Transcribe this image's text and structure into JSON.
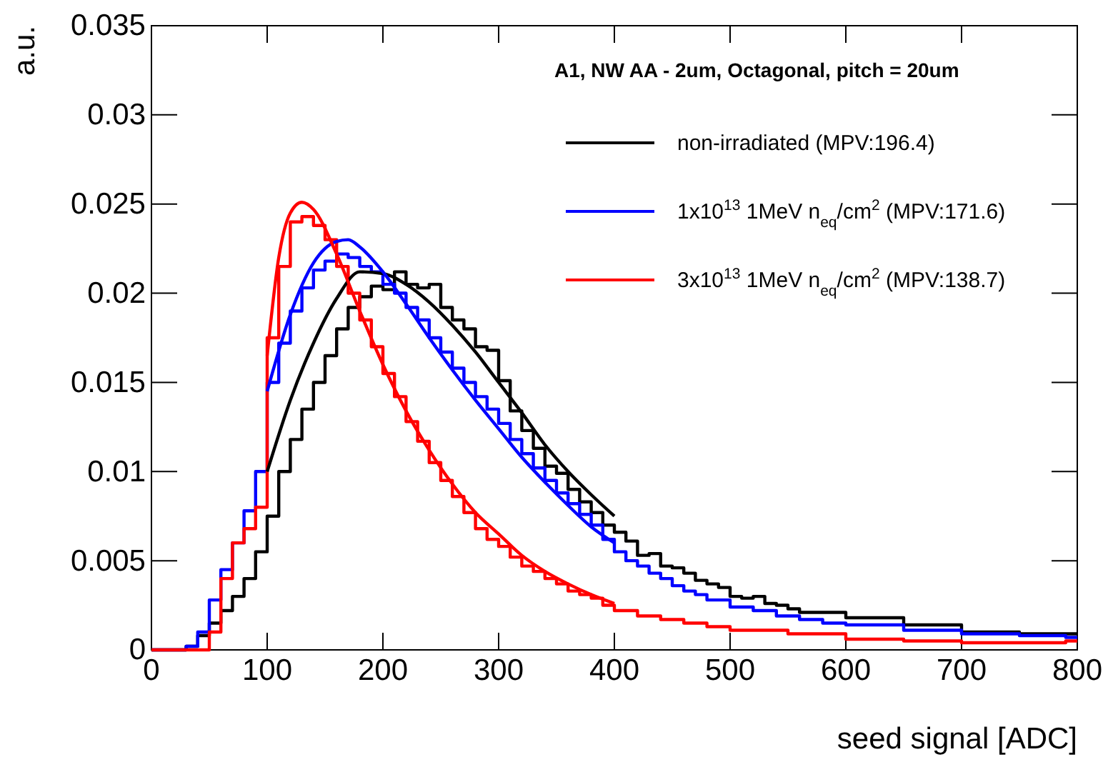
{
  "chart_data": {
    "type": "step",
    "xlabel": "seed signal [ADC]",
    "ylabel": "a.u.",
    "legend_title": "A1, NW AA - 2um, Octagonal, pitch = 20um",
    "legend": "top right",
    "grid": false,
    "xlim": [
      0,
      800
    ],
    "xticks": [
      0,
      100,
      200,
      300,
      400,
      500,
      600,
      700,
      800
    ],
    "ylim": [
      0,
      0.035
    ],
    "yticks": [
      0,
      0.005,
      0.01,
      0.015,
      0.02,
      0.025,
      0.03,
      0.035
    ],
    "series": [
      {
        "name": "non-irradiated (MPV:196.4)",
        "color": "#000000",
        "x": [
          0,
          30,
          40,
          50,
          60,
          70,
          80,
          90,
          100,
          110,
          120,
          130,
          140,
          150,
          160,
          170,
          180,
          190,
          200,
          210,
          220,
          230,
          240,
          250,
          260,
          270,
          280,
          290,
          300,
          310,
          320,
          330,
          340,
          350,
          360,
          370,
          380,
          390,
          400,
          410,
          420,
          430,
          440,
          450,
          460,
          470,
          480,
          490,
          500,
          510,
          520,
          530,
          540,
          550,
          560,
          600,
          650,
          700,
          750,
          790,
          800
        ],
        "values": [
          0,
          0.0002,
          0.0008,
          0.0015,
          0.0022,
          0.003,
          0.004,
          0.0055,
          0.0075,
          0.01,
          0.0118,
          0.0135,
          0.015,
          0.0165,
          0.018,
          0.0192,
          0.0198,
          0.0204,
          0.0202,
          0.0212,
          0.0205,
          0.0203,
          0.0205,
          0.0192,
          0.0185,
          0.018,
          0.017,
          0.0168,
          0.0151,
          0.0134,
          0.0123,
          0.0113,
          0.0103,
          0.0099,
          0.009,
          0.0083,
          0.0077,
          0.007,
          0.0066,
          0.0061,
          0.0053,
          0.0054,
          0.0047,
          0.0046,
          0.0043,
          0.0039,
          0.0037,
          0.0035,
          0.003,
          0.0029,
          0.003,
          0.0026,
          0.0025,
          0.0023,
          0.0021,
          0.0018,
          0.0014,
          0.001,
          0.0009,
          0.0009,
          0.0009
        ]
      },
      {
        "name": "1x10$^{13}$ 1MeV n$_{eq}$/cm$^{2}$ (MPV:171.6)",
        "color": "#0000ff",
        "x": [
          0,
          30,
          40,
          50,
          60,
          70,
          80,
          90,
          100,
          110,
          120,
          130,
          140,
          150,
          160,
          170,
          180,
          190,
          200,
          210,
          220,
          230,
          240,
          250,
          260,
          270,
          280,
          290,
          300,
          310,
          320,
          330,
          340,
          350,
          360,
          370,
          380,
          390,
          400,
          410,
          420,
          430,
          440,
          450,
          460,
          470,
          480,
          500,
          520,
          540,
          560,
          580,
          600,
          650,
          700,
          750,
          790,
          800
        ],
        "values": [
          0,
          0.0002,
          0.001,
          0.0028,
          0.0045,
          0.006,
          0.0078,
          0.01,
          0.015,
          0.0172,
          0.019,
          0.0203,
          0.0213,
          0.0218,
          0.0222,
          0.022,
          0.0215,
          0.0212,
          0.0205,
          0.02,
          0.0192,
          0.0185,
          0.0175,
          0.0167,
          0.0158,
          0.015,
          0.0142,
          0.0135,
          0.0127,
          0.0118,
          0.011,
          0.0102,
          0.0095,
          0.0088,
          0.0082,
          0.0076,
          0.007,
          0.0062,
          0.0055,
          0.005,
          0.0047,
          0.0043,
          0.004,
          0.0036,
          0.0033,
          0.0031,
          0.0028,
          0.0024,
          0.0022,
          0.0019,
          0.0017,
          0.0015,
          0.0014,
          0.0011,
          0.0009,
          0.0008,
          0.0007,
          0.0007
        ]
      },
      {
        "name": "3x10$^{13}$ 1MeV n$_{eq}$/cm$^{2}$ (MPV:138.7)",
        "color": "#ff0000",
        "x": [
          0,
          50,
          60,
          70,
          80,
          90,
          100,
          110,
          120,
          130,
          140,
          150,
          160,
          170,
          180,
          190,
          200,
          210,
          220,
          230,
          240,
          250,
          260,
          270,
          280,
          290,
          300,
          310,
          320,
          330,
          340,
          350,
          360,
          370,
          380,
          390,
          400,
          420,
          440,
          460,
          480,
          500,
          550,
          600,
          650,
          700,
          750,
          790,
          800
        ],
        "values": [
          0,
          0.001,
          0.004,
          0.006,
          0.0068,
          0.008,
          0.0175,
          0.0215,
          0.024,
          0.0243,
          0.0238,
          0.023,
          0.0215,
          0.02,
          0.0185,
          0.017,
          0.0155,
          0.0142,
          0.0128,
          0.0117,
          0.0105,
          0.0095,
          0.0086,
          0.0077,
          0.0068,
          0.0062,
          0.0058,
          0.0052,
          0.0047,
          0.0044,
          0.004,
          0.0037,
          0.0033,
          0.0031,
          0.0029,
          0.0025,
          0.0022,
          0.0019,
          0.0017,
          0.0015,
          0.0013,
          0.0011,
          0.0009,
          0.0006,
          0.0005,
          0.0004,
          0.0004,
          0.0005,
          0.0005
        ]
      },
      {
        "type": "line",
        "color": "#000000",
        "x": [
          100,
          120,
          140,
          160,
          180,
          200,
          220,
          240,
          260,
          280,
          300,
          320,
          340,
          360,
          380,
          400
        ],
        "values": [
          0.01,
          0.014,
          0.0172,
          0.0197,
          0.0212,
          0.0211,
          0.0205,
          0.0195,
          0.0182,
          0.0167,
          0.015,
          0.0133,
          0.0115,
          0.01,
          0.0087,
          0.0075
        ]
      },
      {
        "type": "line",
        "color": "#0000ff",
        "x": [
          100,
          120,
          140,
          160,
          170,
          180,
          200,
          220,
          240,
          260,
          280,
          300,
          320,
          340,
          360,
          380,
          400
        ],
        "values": [
          0.0145,
          0.0188,
          0.0217,
          0.0229,
          0.023,
          0.0226,
          0.0212,
          0.0194,
          0.0175,
          0.0157,
          0.014,
          0.0124,
          0.0108,
          0.0094,
          0.0081,
          0.0069,
          0.006
        ]
      },
      {
        "type": "line",
        "color": "#ff0000",
        "x": [
          100,
          110,
          120,
          130,
          140,
          160,
          180,
          200,
          220,
          240,
          260,
          280,
          300,
          320,
          340,
          360,
          380,
          400
        ],
        "values": [
          0.0165,
          0.022,
          0.0245,
          0.0251,
          0.0247,
          0.0222,
          0.019,
          0.016,
          0.0134,
          0.0112,
          0.0093,
          0.0077,
          0.0065,
          0.0053,
          0.0044,
          0.0037,
          0.0031,
          0.0026
        ]
      }
    ]
  }
}
